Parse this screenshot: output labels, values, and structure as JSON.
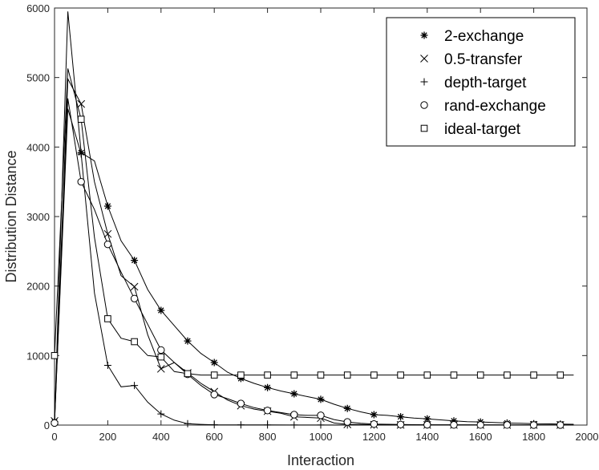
{
  "chart_data": {
    "type": "line",
    "xlabel": "Interaction",
    "ylabel": "Distribution Distance",
    "xlim": [
      0,
      2000
    ],
    "ylim": [
      0,
      6000
    ],
    "xticks": [
      0,
      200,
      400,
      600,
      800,
      1000,
      1200,
      1400,
      1600,
      1800,
      2000
    ],
    "yticks": [
      0,
      1000,
      2000,
      3000,
      4000,
      5000,
      6000
    ],
    "grid": false,
    "legend_position": "top-right",
    "series": [
      {
        "name": "2-exchange",
        "marker": "asterisk",
        "points": [
          [
            0,
            50
          ],
          [
            50,
            5950
          ],
          [
            100,
            3920
          ],
          [
            150,
            3800
          ],
          [
            200,
            3150
          ],
          [
            250,
            2650
          ],
          [
            300,
            2370
          ],
          [
            350,
            1950
          ],
          [
            400,
            1650
          ],
          [
            450,
            1430
          ],
          [
            500,
            1210
          ],
          [
            550,
            1030
          ],
          [
            600,
            900
          ],
          [
            650,
            760
          ],
          [
            700,
            670
          ],
          [
            750,
            600
          ],
          [
            800,
            540
          ],
          [
            850,
            490
          ],
          [
            900,
            450
          ],
          [
            950,
            410
          ],
          [
            1000,
            370
          ],
          [
            1050,
            300
          ],
          [
            1100,
            240
          ],
          [
            1150,
            190
          ],
          [
            1200,
            150
          ],
          [
            1250,
            140
          ],
          [
            1300,
            120
          ],
          [
            1350,
            100
          ],
          [
            1400,
            90
          ],
          [
            1450,
            75
          ],
          [
            1500,
            60
          ],
          [
            1550,
            50
          ],
          [
            1600,
            45
          ],
          [
            1650,
            38
          ],
          [
            1700,
            30
          ],
          [
            1750,
            26
          ],
          [
            1800,
            20
          ],
          [
            1850,
            18
          ],
          [
            1900,
            15
          ],
          [
            1950,
            12
          ]
        ],
        "marker_x": [
          0,
          100,
          200,
          300,
          400,
          500,
          600,
          700,
          800,
          900,
          1000,
          1100,
          1200,
          1300,
          1400,
          1500,
          1600,
          1700,
          1800,
          1900
        ]
      },
      {
        "name": "0.5-transfer",
        "marker": "cross",
        "points": [
          [
            0,
            60
          ],
          [
            50,
            4980
          ],
          [
            100,
            4620
          ],
          [
            150,
            3500
          ],
          [
            200,
            2750
          ],
          [
            250,
            2150
          ],
          [
            300,
            1990
          ],
          [
            350,
            1300
          ],
          [
            400,
            810
          ],
          [
            450,
            900
          ],
          [
            500,
            750
          ],
          [
            550,
            600
          ],
          [
            600,
            480
          ],
          [
            650,
            360
          ],
          [
            700,
            280
          ],
          [
            750,
            230
          ],
          [
            800,
            200
          ],
          [
            850,
            170
          ],
          [
            900,
            120
          ],
          [
            950,
            110
          ],
          [
            1000,
            100
          ],
          [
            1050,
            30
          ],
          [
            1100,
            10
          ],
          [
            1150,
            8
          ],
          [
            1200,
            5
          ],
          [
            1300,
            3
          ],
          [
            1400,
            2
          ],
          [
            1500,
            2
          ],
          [
            1600,
            1
          ],
          [
            1700,
            1
          ],
          [
            1800,
            1
          ],
          [
            1900,
            1
          ],
          [
            1950,
            1
          ]
        ],
        "marker_x": [
          0,
          100,
          200,
          300,
          400,
          500,
          600,
          700,
          800,
          900,
          1000,
          1100,
          1200,
          1300,
          1400,
          1500,
          1600,
          1700,
          1800,
          1900
        ]
      },
      {
        "name": "depth-target",
        "marker": "plus",
        "points": [
          [
            0,
            30
          ],
          [
            50,
            4550
          ],
          [
            100,
            3900
          ],
          [
            150,
            1900
          ],
          [
            200,
            860
          ],
          [
            250,
            550
          ],
          [
            300,
            570
          ],
          [
            350,
            330
          ],
          [
            400,
            160
          ],
          [
            450,
            70
          ],
          [
            500,
            20
          ],
          [
            550,
            10
          ],
          [
            600,
            5
          ],
          [
            700,
            3
          ],
          [
            800,
            2
          ],
          [
            900,
            1
          ],
          [
            1000,
            1
          ],
          [
            1100,
            1
          ],
          [
            1200,
            1
          ],
          [
            1300,
            1
          ],
          [
            1400,
            1
          ],
          [
            1500,
            1
          ],
          [
            1600,
            1
          ],
          [
            1700,
            1
          ],
          [
            1800,
            1
          ],
          [
            1900,
            1
          ],
          [
            1950,
            1
          ]
        ],
        "marker_x": [
          0,
          100,
          200,
          300,
          400,
          500,
          600,
          700,
          800,
          900,
          1000,
          1100,
          1200,
          1300,
          1400,
          1500,
          1600,
          1700,
          1800,
          1900
        ]
      },
      {
        "name": "rand-exchange",
        "marker": "circle",
        "points": [
          [
            0,
            30
          ],
          [
            50,
            4700
          ],
          [
            100,
            3500
          ],
          [
            150,
            3100
          ],
          [
            200,
            2600
          ],
          [
            250,
            2200
          ],
          [
            300,
            1820
          ],
          [
            350,
            1450
          ],
          [
            400,
            1080
          ],
          [
            450,
            900
          ],
          [
            500,
            730
          ],
          [
            550,
            570
          ],
          [
            600,
            440
          ],
          [
            650,
            380
          ],
          [
            700,
            310
          ],
          [
            750,
            250
          ],
          [
            800,
            210
          ],
          [
            850,
            180
          ],
          [
            900,
            150
          ],
          [
            950,
            140
          ],
          [
            1000,
            140
          ],
          [
            1050,
            80
          ],
          [
            1100,
            45
          ],
          [
            1150,
            25
          ],
          [
            1200,
            15
          ],
          [
            1300,
            8
          ],
          [
            1400,
            5
          ],
          [
            1500,
            3
          ],
          [
            1600,
            2
          ],
          [
            1700,
            2
          ],
          [
            1800,
            1
          ],
          [
            1900,
            1
          ],
          [
            1950,
            1
          ]
        ],
        "marker_x": [
          0,
          100,
          200,
          300,
          400,
          500,
          600,
          700,
          800,
          900,
          1000,
          1100,
          1200,
          1300,
          1400,
          1500,
          1600,
          1700,
          1800,
          1900
        ]
      },
      {
        "name": "ideal-target",
        "marker": "square",
        "points": [
          [
            0,
            1000
          ],
          [
            50,
            5130
          ],
          [
            100,
            4400
          ],
          [
            150,
            2700
          ],
          [
            200,
            1530
          ],
          [
            250,
            1250
          ],
          [
            300,
            1200
          ],
          [
            350,
            1000
          ],
          [
            400,
            980
          ],
          [
            450,
            770
          ],
          [
            500,
            740
          ],
          [
            550,
            720
          ],
          [
            600,
            720
          ],
          [
            700,
            720
          ],
          [
            800,
            720
          ],
          [
            900,
            720
          ],
          [
            1000,
            720
          ],
          [
            1100,
            720
          ],
          [
            1200,
            720
          ],
          [
            1300,
            720
          ],
          [
            1400,
            720
          ],
          [
            1500,
            720
          ],
          [
            1600,
            720
          ],
          [
            1700,
            720
          ],
          [
            1800,
            720
          ],
          [
            1900,
            720
          ],
          [
            1950,
            720
          ]
        ],
        "marker_x": [
          0,
          100,
          200,
          300,
          400,
          500,
          600,
          700,
          800,
          900,
          1000,
          1100,
          1200,
          1300,
          1400,
          1500,
          1600,
          1700,
          1800,
          1900
        ]
      }
    ]
  }
}
